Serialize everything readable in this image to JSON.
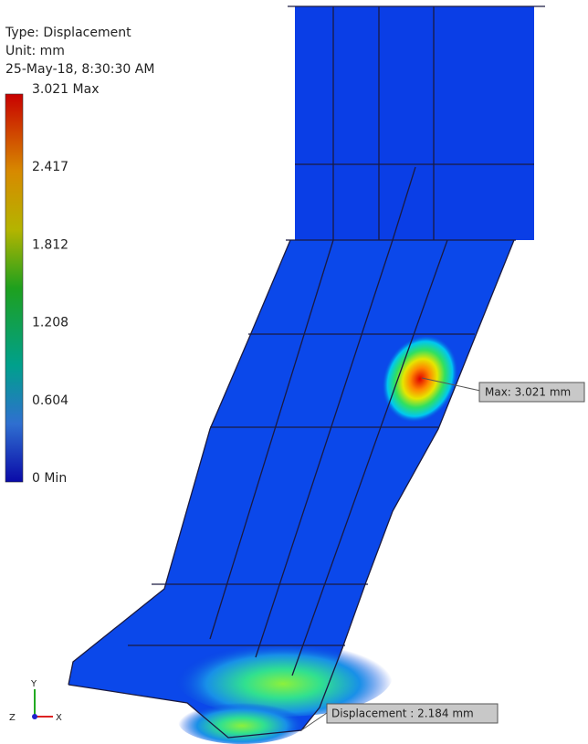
{
  "legend": {
    "type": "Type: Displacement",
    "unit": "Unit: mm",
    "date": "25-May-18, 8:30:30 AM",
    "ticks": [
      "3.021 Max",
      "2.417",
      "1.812",
      "1.208",
      "0.604",
      "0 Min"
    ]
  },
  "callouts": {
    "max": "Max: 3.021 mm",
    "probe": "Displacement : 2.184 mm"
  },
  "triad": {
    "y": "Y",
    "z": "Z",
    "x": "X"
  }
}
